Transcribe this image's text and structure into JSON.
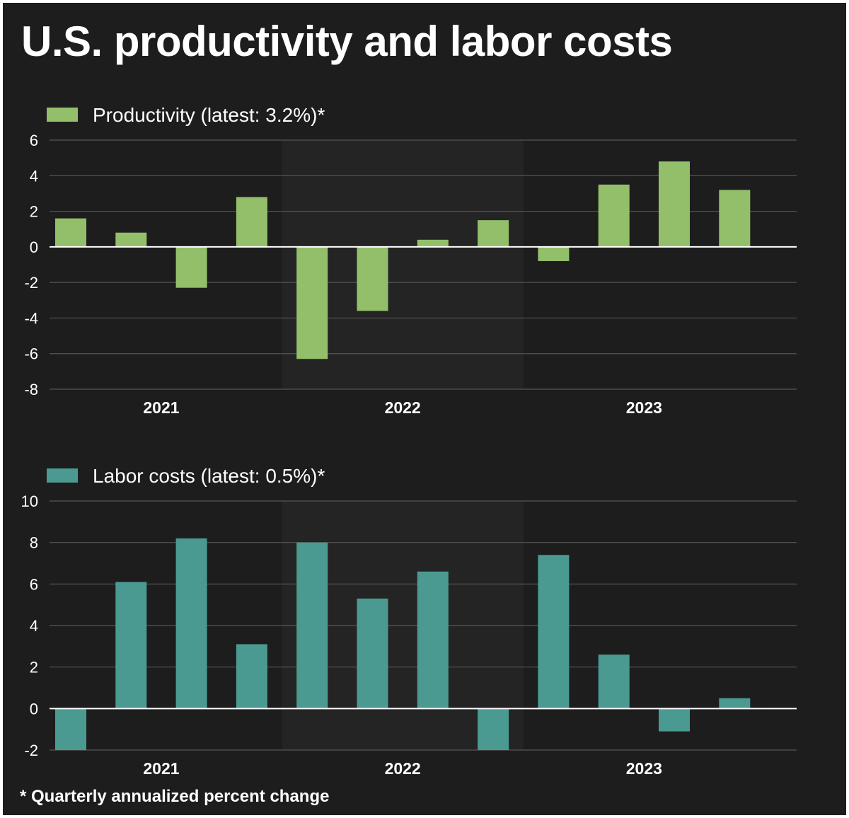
{
  "title": "U.S. productivity and labor costs",
  "footnote": "* Quarterly annualized percent change",
  "colors": {
    "background": "#1d1d1d",
    "band": "#242424",
    "grid": "#555555",
    "zero_line": "#ffffff",
    "text": "#ffffff"
  },
  "chart_data": [
    {
      "type": "bar",
      "title": "",
      "legend": "Productivity (latest: 3.2%)*",
      "color": "#93bf6a",
      "categories": [
        "2021 Q1",
        "2021 Q2",
        "2021 Q3",
        "2021 Q4",
        "2022 Q1",
        "2022 Q2",
        "2022 Q3",
        "2022 Q4",
        "2023 Q1",
        "2023 Q2",
        "2023 Q3",
        "2023 Q4"
      ],
      "x_tick_labels": [
        "2021",
        "2022",
        "2023"
      ],
      "values": [
        1.6,
        0.8,
        -2.3,
        2.8,
        -6.3,
        -3.6,
        0.4,
        1.5,
        -0.8,
        3.5,
        4.8,
        3.2
      ],
      "yticks": [
        6,
        4,
        2,
        0,
        -2,
        -4,
        -6,
        -8
      ],
      "ylim": [
        -8,
        6
      ],
      "xlabel": "",
      "ylabel": "",
      "grid": true,
      "legend_position": "top-left"
    },
    {
      "type": "bar",
      "title": "",
      "legend": "Labor costs (latest: 0.5%)*",
      "color": "#4a9a91",
      "categories": [
        "2021 Q1",
        "2021 Q2",
        "2021 Q3",
        "2021 Q4",
        "2022 Q1",
        "2022 Q2",
        "2022 Q3",
        "2022 Q4",
        "2023 Q1",
        "2023 Q2",
        "2023 Q3",
        "2023 Q4"
      ],
      "x_tick_labels": [
        "2021",
        "2022",
        "2023"
      ],
      "values": [
        -2.0,
        6.1,
        8.2,
        3.1,
        8.0,
        5.3,
        6.6,
        -2.0,
        7.4,
        2.6,
        -1.1,
        0.5
      ],
      "yticks": [
        10,
        8,
        6,
        4,
        2,
        0,
        -2
      ],
      "ylim": [
        -2,
        10
      ],
      "xlabel": "",
      "ylabel": "",
      "grid": true,
      "legend_position": "top-left"
    }
  ]
}
